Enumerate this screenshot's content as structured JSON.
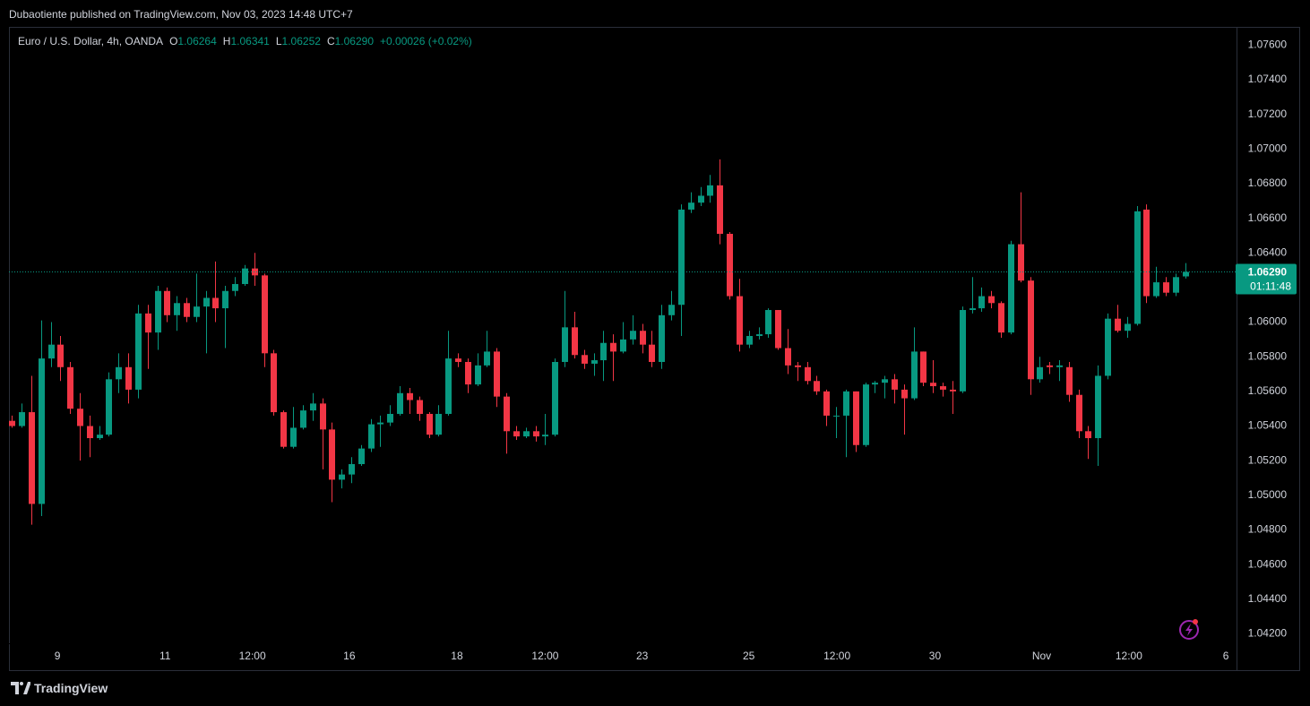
{
  "header": {
    "text": "Dubaotiente published on TradingView.com, Nov 03, 2023 14:48 UTC+7"
  },
  "chart_data": {
    "type": "candlestick",
    "title": "Euro / U.S. Dollar, 4h, OANDA",
    "ohlc_legend": [
      {
        "key": "O",
        "value": "1.06264"
      },
      {
        "key": "H",
        "value": "1.06341"
      },
      {
        "key": "L",
        "value": "1.06252"
      },
      {
        "key": "C",
        "value": "1.06290"
      }
    ],
    "change": "+0.00026 (+0.02%)",
    "open": [
      1.0543,
      1.054,
      1.0548,
      1.0495,
      1.0579,
      1.0587,
      1.0574,
      1.055,
      1.054,
      1.0533,
      1.0535,
      1.0567,
      1.0574,
      1.0561,
      1.0605,
      1.0594,
      1.0618,
      1.0604,
      1.0611,
      1.0603,
      1.0609,
      1.0614,
      1.0608,
      1.0618,
      1.0622,
      1.0631,
      1.0627,
      1.0582,
      1.0548,
      1.0528,
      1.0539,
      1.0549,
      1.0553,
      1.0538,
      1.0509,
      1.0512,
      1.0518,
      1.0527,
      1.0541,
      1.0542,
      1.0547,
      1.0559,
      1.0555,
      1.0547,
      1.0535,
      1.0547,
      1.0579,
      1.0577,
      1.0564,
      1.0575,
      1.0583,
      1.0557,
      1.0537,
      1.0534,
      1.0537,
      1.0534,
      1.0535,
      1.0577,
      1.0597,
      1.0581,
      1.0576,
      1.0578,
      1.0588,
      1.0583,
      1.059,
      1.0595,
      1.0587,
      1.0577,
      1.0604,
      1.061,
      1.0665,
      1.0669,
      1.0673,
      1.0679,
      1.0651,
      1.0615,
      1.0587,
      1.0592,
      1.0593,
      1.0607,
      1.0585,
      1.0575,
      1.0574,
      1.0566,
      1.056,
      1.0546,
      1.0546,
      1.056,
      1.0529,
      1.0564,
      1.0565,
      1.0567,
      1.0561,
      1.0556,
      1.0583,
      1.0565,
      1.0563,
      1.0561,
      1.056,
      1.0607,
      1.0608,
      1.0615,
      1.0611,
      1.0594,
      1.0645,
      1.0624,
      1.0567,
      1.0575,
      1.0574,
      1.0574,
      1.0558,
      1.0537,
      1.0533,
      1.0569,
      1.0602,
      1.0595,
      1.0599,
      1.0665,
      1.0615,
      1.0623,
      1.0617,
      1.06264
    ],
    "high": [
      1.0546,
      1.0553,
      1.0569,
      1.0601,
      1.06,
      1.0592,
      1.0577,
      1.0559,
      1.0546,
      1.054,
      1.0571,
      1.0582,
      1.0582,
      1.061,
      1.061,
      1.0621,
      1.062,
      1.0615,
      1.0614,
      1.0628,
      1.0618,
      1.0635,
      1.0621,
      1.0626,
      1.0633,
      1.064,
      1.0628,
      1.0584,
      1.0549,
      1.0551,
      1.0552,
      1.0559,
      1.0556,
      1.0542,
      1.0515,
      1.0522,
      1.0529,
      1.0544,
      1.0546,
      1.0552,
      1.0563,
      1.0562,
      1.0557,
      1.0548,
      1.0552,
      1.0595,
      1.0582,
      1.0579,
      1.0582,
      1.0595,
      1.0585,
      1.0559,
      1.054,
      1.0539,
      1.054,
      1.0547,
      1.0579,
      1.0618,
      1.0606,
      1.0584,
      1.0582,
      1.0595,
      1.0593,
      1.06,
      1.0604,
      1.0599,
      1.0595,
      1.061,
      1.0618,
      1.0668,
      1.0675,
      1.0678,
      1.0685,
      1.0694,
      1.0652,
      1.0625,
      1.0595,
      1.0597,
      1.0608,
      1.0607,
      1.0596,
      1.0577,
      1.0577,
      1.0569,
      1.0561,
      1.0551,
      1.0561,
      1.056,
      1.0565,
      1.0566,
      1.0569,
      1.057,
      1.0564,
      1.0597,
      1.0583,
      1.0578,
      1.0565,
      1.0566,
      1.0609,
      1.0626,
      1.062,
      1.0618,
      1.0612,
      1.0647,
      1.0675,
      1.0626,
      1.058,
      1.0577,
      1.0578,
      1.0577,
      1.0561,
      1.054,
      1.0575,
      1.0605,
      1.061,
      1.0603,
      1.0667,
      1.0668,
      1.0632,
      1.0626,
      1.0628,
      1.06341
    ],
    "low": [
      1.0539,
      1.0539,
      1.0483,
      1.0488,
      1.0574,
      1.0566,
      1.0547,
      1.052,
      1.0522,
      1.0532,
      1.0534,
      1.0559,
      1.0553,
      1.0556,
      1.0573,
      1.0584,
      1.06,
      1.0595,
      1.06,
      1.06,
      1.0582,
      1.06,
      1.0585,
      1.0615,
      1.0621,
      1.0621,
      1.0574,
      1.0546,
      1.0527,
      1.0527,
      1.0538,
      1.0543,
      1.0515,
      1.0496,
      1.0504,
      1.0507,
      1.0517,
      1.0525,
      1.0528,
      1.054,
      1.0546,
      1.0547,
      1.0543,
      1.0533,
      1.0534,
      1.0546,
      1.0574,
      1.0559,
      1.0563,
      1.0574,
      1.0551,
      1.0524,
      1.0532,
      1.0533,
      1.0531,
      1.0529,
      1.0534,
      1.0574,
      1.0579,
      1.0573,
      1.0569,
      1.0566,
      1.0566,
      1.0582,
      1.0587,
      1.0582,
      1.0574,
      1.0573,
      1.0601,
      1.0592,
      1.0663,
      1.0667,
      1.0669,
      1.0645,
      1.0613,
      1.0583,
      1.0585,
      1.059,
      1.0591,
      1.0584,
      1.057,
      1.0566,
      1.0564,
      1.0558,
      1.054,
      1.0533,
      1.0522,
      1.0525,
      1.0528,
      1.0559,
      1.0556,
      1.0553,
      1.0535,
      1.0555,
      1.0563,
      1.0559,
      1.0557,
      1.0547,
      1.0559,
      1.0605,
      1.0606,
      1.0608,
      1.0591,
      1.0593,
      1.0623,
      1.0558,
      1.0565,
      1.057,
      1.0566,
      1.0554,
      1.0533,
      1.0521,
      1.0517,
      1.0567,
      1.0594,
      1.0591,
      1.0598,
      1.0611,
      1.0614,
      1.0615,
      1.0615,
      1.06252
    ],
    "close": [
      1.054,
      1.0548,
      1.0495,
      1.0579,
      1.0587,
      1.0574,
      1.055,
      1.054,
      1.0533,
      1.0535,
      1.0567,
      1.0574,
      1.0561,
      1.0605,
      1.0594,
      1.0618,
      1.0604,
      1.0611,
      1.0603,
      1.0609,
      1.0614,
      1.0608,
      1.0618,
      1.0622,
      1.0631,
      1.0627,
      1.0582,
      1.0548,
      1.0528,
      1.0539,
      1.0549,
      1.0553,
      1.0538,
      1.0509,
      1.0512,
      1.0518,
      1.0527,
      1.0541,
      1.0542,
      1.0547,
      1.0559,
      1.0555,
      1.0547,
      1.0535,
      1.0547,
      1.0579,
      1.0577,
      1.0564,
      1.0575,
      1.0583,
      1.0557,
      1.0537,
      1.0534,
      1.0537,
      1.0534,
      1.0535,
      1.0577,
      1.0597,
      1.0581,
      1.0576,
      1.0578,
      1.0588,
      1.0583,
      1.059,
      1.0595,
      1.0587,
      1.0577,
      1.0604,
      1.061,
      1.0665,
      1.0669,
      1.0673,
      1.0679,
      1.0651,
      1.0615,
      1.0587,
      1.0592,
      1.0593,
      1.0607,
      1.0585,
      1.0575,
      1.0574,
      1.0566,
      1.056,
      1.0546,
      1.0546,
      1.056,
      1.0529,
      1.0564,
      1.0565,
      1.0567,
      1.0561,
      1.0556,
      1.0583,
      1.0565,
      1.0563,
      1.0561,
      1.056,
      1.0607,
      1.0608,
      1.0615,
      1.0611,
      1.0594,
      1.0645,
      1.0624,
      1.0567,
      1.0574,
      1.0574,
      1.0575,
      1.0558,
      1.0537,
      1.0533,
      1.0569,
      1.0602,
      1.0595,
      1.0599,
      1.0664,
      1.0615,
      1.0623,
      1.0617,
      1.0626,
      1.0629
    ],
    "up_color": "#089981",
    "down_color": "#f23645",
    "xlim": [
      -0.3,
      126.3
    ],
    "xticks": [
      {
        "value": 4.7,
        "label": "9"
      },
      {
        "value": 15.8,
        "label": "11"
      },
      {
        "value": 24.8,
        "label": "12:00"
      },
      {
        "value": 34.8,
        "label": "16"
      },
      {
        "value": 45.9,
        "label": "18"
      },
      {
        "value": 55.0,
        "label": "12:00"
      },
      {
        "value": 65.0,
        "label": "23"
      },
      {
        "value": 76.0,
        "label": "25"
      },
      {
        "value": 85.1,
        "label": "12:00"
      },
      {
        "value": 95.2,
        "label": "30"
      },
      {
        "value": 106.2,
        "label": "Nov"
      },
      {
        "value": 115.2,
        "label": "12:00"
      },
      {
        "value": 125.2,
        "label": "6"
      }
    ],
    "ylim": [
      1.0399,
      1.077
    ],
    "yticks": [
      {
        "value": 1.042,
        "label": "1.04200"
      },
      {
        "value": 1.044,
        "label": "1.04400"
      },
      {
        "value": 1.046,
        "label": "1.04600"
      },
      {
        "value": 1.048,
        "label": "1.04800"
      },
      {
        "value": 1.05,
        "label": "1.05000"
      },
      {
        "value": 1.052,
        "label": "1.05200"
      },
      {
        "value": 1.054,
        "label": "1.05400"
      },
      {
        "value": 1.056,
        "label": "1.05600"
      },
      {
        "value": 1.058,
        "label": "1.05800"
      },
      {
        "value": 1.06,
        "label": "1.06000"
      },
      {
        "value": 1.062,
        "label": "1.06200"
      },
      {
        "value": 1.064,
        "label": "1.06400"
      },
      {
        "value": 1.066,
        "label": "1.06600"
      },
      {
        "value": 1.068,
        "label": "1.06800"
      },
      {
        "value": 1.07,
        "label": "1.07000"
      },
      {
        "value": 1.072,
        "label": "1.07200"
      },
      {
        "value": 1.074,
        "label": "1.07400"
      },
      {
        "value": 1.076,
        "label": "1.07600"
      }
    ],
    "grid": false,
    "last_price_label": "1.06290",
    "countdown": "01:11:48"
  },
  "footer": {
    "brand": "TradingView"
  }
}
